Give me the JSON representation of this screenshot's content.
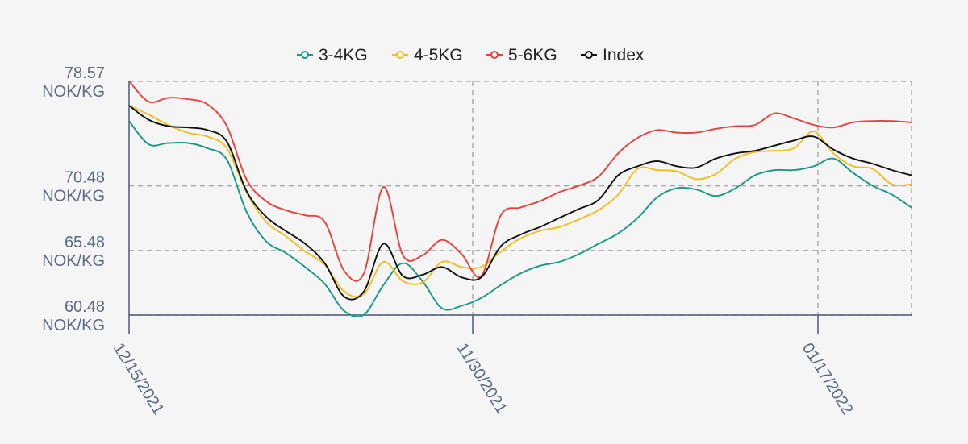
{
  "chart_data": {
    "type": "line",
    "title": "",
    "xlabel": "",
    "ylabel": "",
    "x_ticks": [
      "12/15/2021",
      "11/30/2021",
      "01/17/2022"
    ],
    "y_ticks": [
      {
        "value": 78.57,
        "label": "78.57",
        "unit": "NOK/KG"
      },
      {
        "value": 70.48,
        "label": "70.48",
        "unit": "NOK/KG"
      },
      {
        "value": 65.48,
        "label": "65.48",
        "unit": "NOK/KG"
      },
      {
        "value": 60.48,
        "label": "60.48",
        "unit": "NOK/KG"
      }
    ],
    "ylim": [
      60.48,
      78.57
    ],
    "grid": true,
    "legend_position": "top-center",
    "series": [
      {
        "name": "3-4KG",
        "color": "#17998a",
        "values": [
          75.5,
          73.7,
          73.8,
          73.8,
          73.4,
          72.5,
          68.5,
          66.2,
          65.3,
          64.2,
          62.9,
          60.8,
          60.5,
          62.8,
          64.5,
          63.1,
          61.0,
          61.2,
          61.8,
          62.8,
          63.7,
          64.3,
          64.6,
          65.2,
          66.0,
          66.8,
          68.0,
          69.6,
          70.3,
          70.2,
          69.7,
          70.3,
          71.3,
          71.7,
          71.7,
          72.0,
          72.6,
          71.5,
          70.5,
          69.8,
          68.8
        ]
      },
      {
        "name": "4-5KG",
        "color": "#f3bd1f",
        "values": [
          76.7,
          76.0,
          75.2,
          74.6,
          74.3,
          73.4,
          70.0,
          67.7,
          66.6,
          65.4,
          64.4,
          62.3,
          62.1,
          64.6,
          63.1,
          63.0,
          64.6,
          64.2,
          64.2,
          65.4,
          66.4,
          67.0,
          67.3,
          67.9,
          68.6,
          69.8,
          71.8,
          71.7,
          71.6,
          71.0,
          71.4,
          72.6,
          73.1,
          73.2,
          73.4,
          74.7,
          73.0,
          72.0,
          71.8,
          70.6,
          70.6
        ]
      },
      {
        "name": "5-6KG",
        "color": "#e8403a",
        "values": [
          78.6,
          77.0,
          77.3,
          77.2,
          76.8,
          75.1,
          71.0,
          69.3,
          68.6,
          68.2,
          67.7,
          63.9,
          63.7,
          70.4,
          65.1,
          65.1,
          66.3,
          65.2,
          63.5,
          68.2,
          68.8,
          69.3,
          70.0,
          70.5,
          71.2,
          73.0,
          74.2,
          74.8,
          74.6,
          74.6,
          74.9,
          75.1,
          75.2,
          76.1,
          75.7,
          75.2,
          75.0,
          75.4,
          75.5,
          75.5,
          75.4
        ]
      },
      {
        "name": "Index",
        "color": "#111111",
        "values": [
          76.7,
          75.6,
          75.1,
          75.0,
          74.8,
          73.9,
          70.1,
          68.1,
          67.0,
          66.0,
          64.5,
          61.9,
          62.3,
          66.0,
          63.5,
          63.6,
          64.2,
          63.4,
          63.4,
          65.8,
          66.7,
          67.3,
          68.0,
          68.7,
          69.4,
          71.3,
          72.0,
          72.4,
          72.0,
          71.9,
          72.6,
          73.0,
          73.2,
          73.6,
          74.0,
          74.3,
          73.3,
          72.6,
          72.2,
          71.7,
          71.3
        ]
      }
    ]
  }
}
